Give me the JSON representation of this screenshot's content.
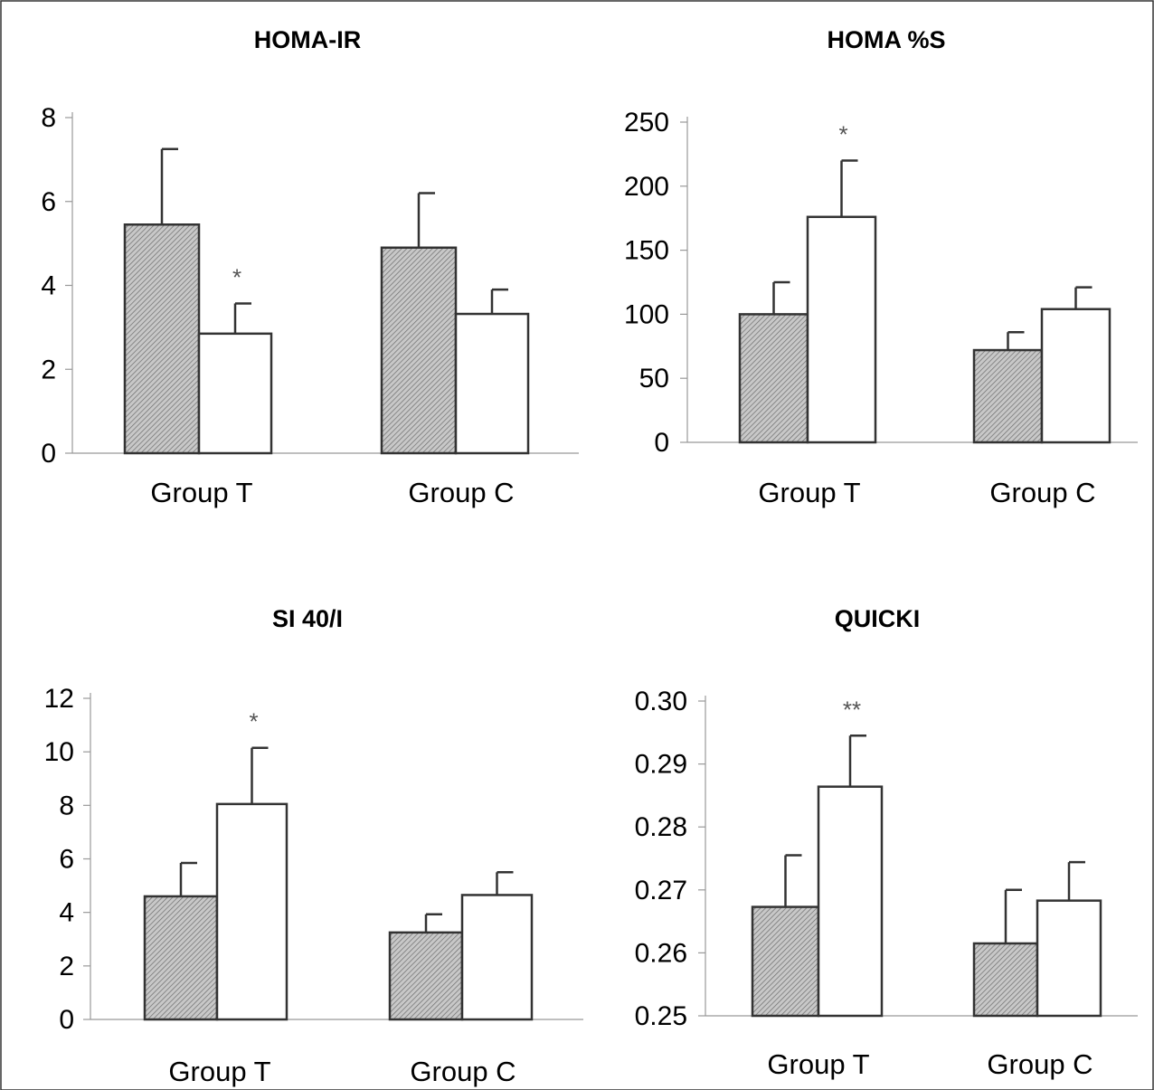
{
  "colors": {
    "hatched_fill": "#c8c8c8",
    "open_fill": "#ffffff",
    "stroke": "#333333",
    "hatch_line": "#6d6d6d"
  },
  "chart_data": [
    {
      "type": "bar",
      "title": "HOMA-IR",
      "categories": [
        "Group T",
        "Group C"
      ],
      "series": [
        {
          "values": [
            5.45,
            4.9
          ],
          "errors": [
            1.8,
            1.3
          ],
          "fill": "hatched"
        },
        {
          "values": [
            2.85,
            3.32
          ],
          "errors": [
            0.72,
            0.58
          ],
          "fill": "open"
        }
      ],
      "yticks": [
        "0",
        "2",
        "4",
        "6",
        "8"
      ],
      "ylim": [
        0,
        8
      ],
      "annotations": [
        {
          "text": "*",
          "category": 0,
          "series": 1
        }
      ]
    },
    {
      "type": "bar",
      "title": "HOMA %S",
      "categories": [
        "Group T",
        "Group C"
      ],
      "series": [
        {
          "values": [
            100,
            72
          ],
          "errors": [
            25,
            14
          ],
          "fill": "hatched"
        },
        {
          "values": [
            176,
            104
          ],
          "errors": [
            44,
            17
          ],
          "fill": "open"
        }
      ],
      "yticks": [
        "0",
        "50",
        "100",
        "150",
        "200",
        "250"
      ],
      "ylim": [
        0,
        250
      ],
      "annotations": [
        {
          "text": "*",
          "category": 0,
          "series": 1
        }
      ]
    },
    {
      "type": "bar",
      "title": "SI 40/I",
      "categories": [
        "Group T",
        "Group C"
      ],
      "series": [
        {
          "values": [
            4.6,
            3.25
          ],
          "errors": [
            1.25,
            0.68
          ],
          "fill": "hatched"
        },
        {
          "values": [
            8.05,
            4.65
          ],
          "errors": [
            2.1,
            0.85
          ],
          "fill": "open"
        }
      ],
      "yticks": [
        "0",
        "2",
        "4",
        "6",
        "8",
        "10",
        "12"
      ],
      "ylim": [
        0,
        12
      ],
      "annotations": [
        {
          "text": "*",
          "category": 0,
          "series": 1
        }
      ]
    },
    {
      "type": "bar",
      "title": "QUICKI",
      "categories": [
        "Group T",
        "Group C"
      ],
      "series": [
        {
          "values": [
            0.2673,
            0.2615
          ],
          "errors": [
            0.0082,
            0.0085
          ],
          "fill": "hatched"
        },
        {
          "values": [
            0.2864,
            0.2683
          ],
          "errors": [
            0.0081,
            0.0061
          ],
          "fill": "open"
        }
      ],
      "yticks": [
        "0.25",
        "0.26",
        "0.27",
        "0.28",
        "0.29",
        "0.30"
      ],
      "ylim": [
        0.25,
        0.3
      ],
      "annotations": [
        {
          "text": "**",
          "category": 0,
          "series": 1
        }
      ]
    }
  ]
}
